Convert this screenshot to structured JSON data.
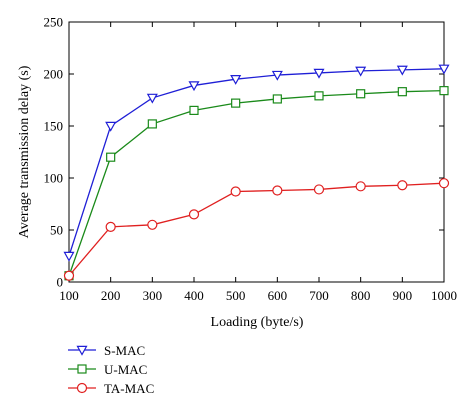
{
  "chart_data": {
    "type": "line",
    "xlabel": "Loading (byte/s)",
    "ylabel": "Average transmission delay (s)",
    "x": [
      100,
      200,
      300,
      400,
      500,
      600,
      700,
      800,
      900,
      1000
    ],
    "xlim": [
      100,
      1000
    ],
    "ylim": [
      0,
      250
    ],
    "x_ticks": [
      100,
      200,
      300,
      400,
      500,
      600,
      700,
      800,
      900,
      1000
    ],
    "y_ticks": [
      0,
      50,
      100,
      150,
      200,
      250
    ],
    "grid": false,
    "legend_position": "below",
    "series": [
      {
        "name": "S-MAC",
        "color": "#1f1fd6",
        "marker": "triangle-down",
        "values": [
          25,
          150,
          177,
          189,
          195,
          199,
          201,
          203,
          204,
          205
        ]
      },
      {
        "name": "U-MAC",
        "color": "#1a8a1a",
        "marker": "square",
        "values": [
          6,
          120,
          152,
          165,
          172,
          176,
          179,
          181,
          183,
          184
        ]
      },
      {
        "name": "TA-MAC",
        "color": "#e02020",
        "marker": "circle",
        "values": [
          6,
          53,
          55,
          65,
          87,
          88,
          89,
          92,
          93,
          95
        ]
      }
    ]
  }
}
